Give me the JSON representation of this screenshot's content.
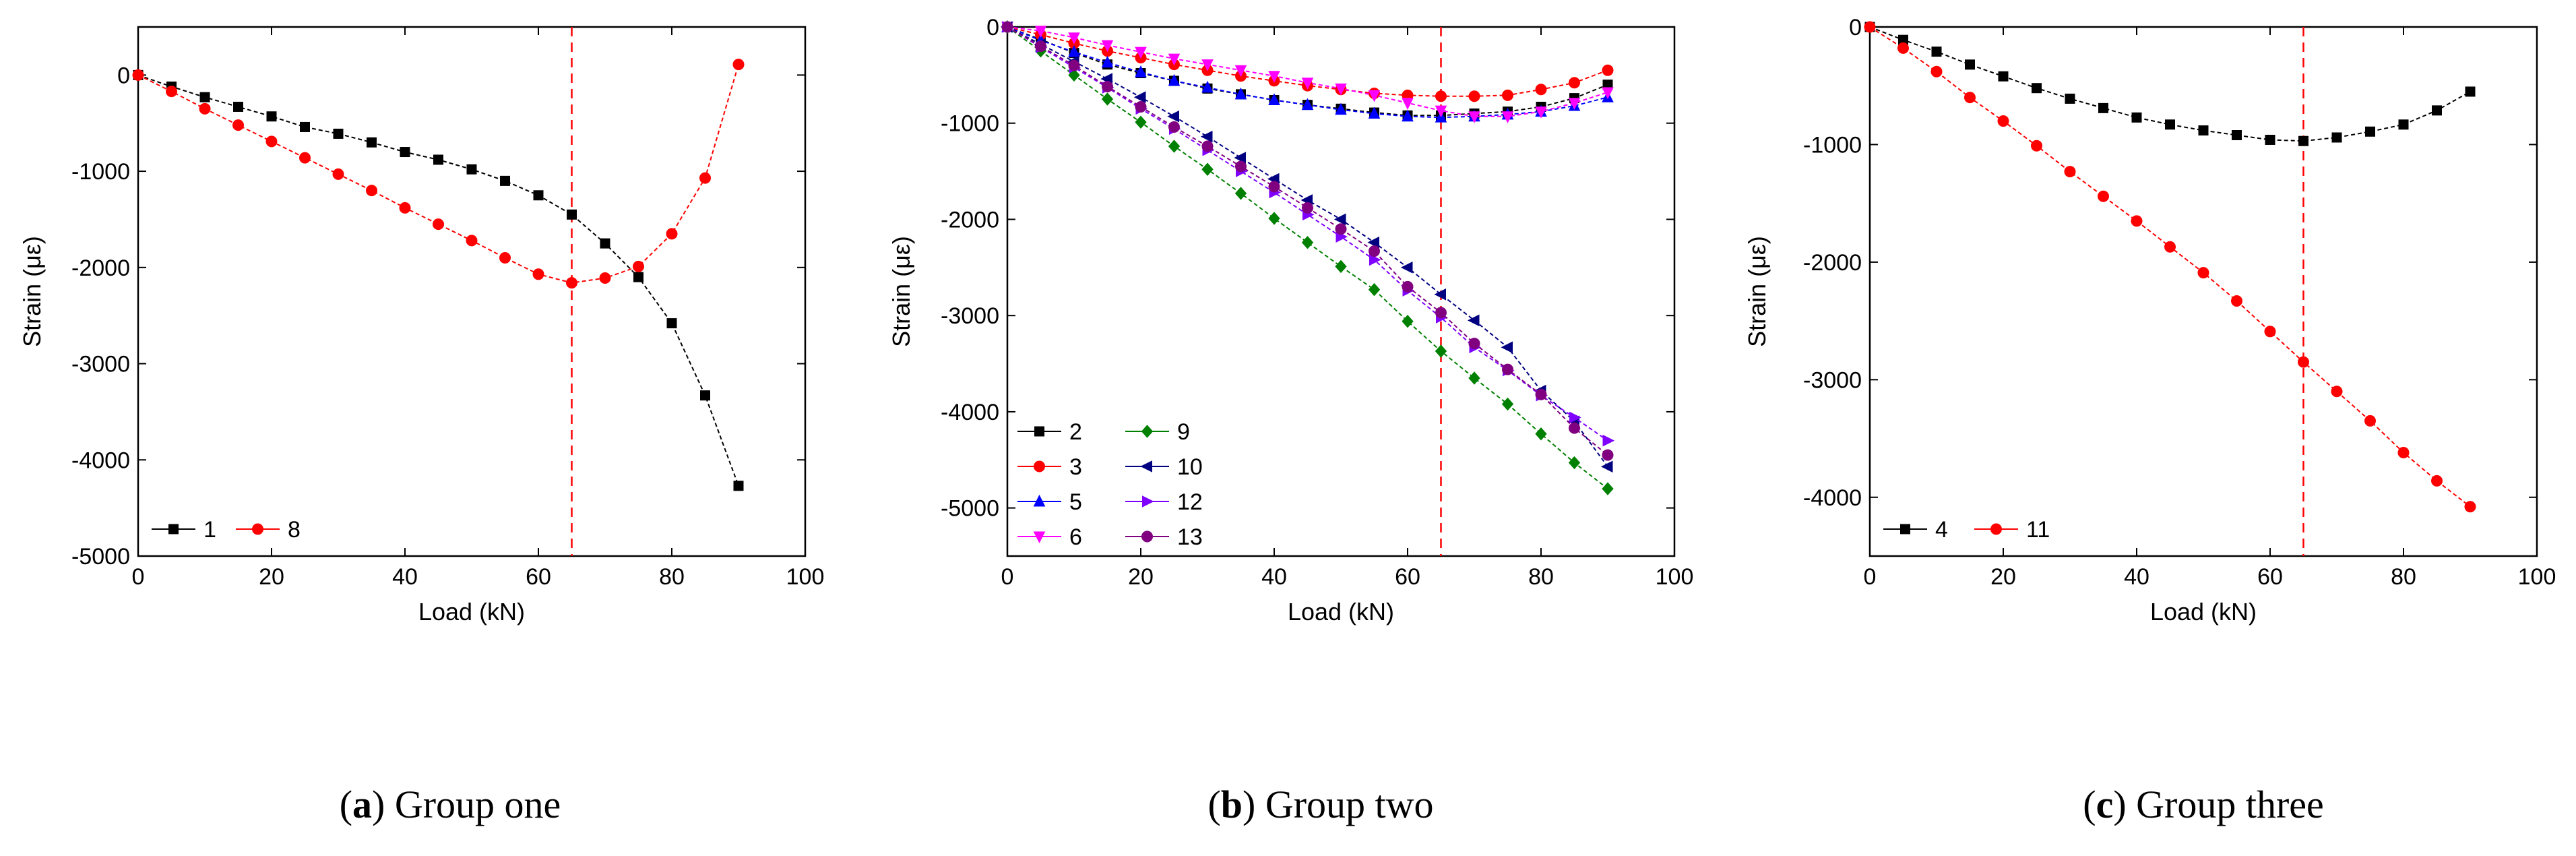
{
  "chart_data": [
    {
      "type": "line",
      "id": "a",
      "caption_letter": "a",
      "caption_text": "Group one",
      "xlabel": "Load (kN)",
      "ylabel": "Strain (με)",
      "xlim": [
        0,
        100
      ],
      "ylim": [
        -5000,
        500
      ],
      "xticks": [
        0,
        20,
        40,
        60,
        80,
        100
      ],
      "yticks": [
        -5000,
        -4000,
        -3000,
        -2000,
        -1000,
        0
      ],
      "xtick_labels": [
        "0",
        "20",
        "40",
        "60",
        "80",
        "100"
      ],
      "ytick_labels": [
        "-5000",
        "-4000",
        "-3000",
        "-2000",
        "-1000",
        "0"
      ],
      "vline_x": 65,
      "legend_position": "bottom-left",
      "legend_columns": 2,
      "x": [
        0,
        5,
        10,
        15,
        20,
        25,
        30,
        35,
        40,
        45,
        50,
        55,
        60,
        65,
        70,
        75,
        80,
        85,
        90
      ],
      "series": [
        {
          "name": "1",
          "color": "#000000",
          "marker": "square",
          "values": [
            0,
            -120,
            -230,
            -330,
            -430,
            -540,
            -610,
            -700,
            -800,
            -880,
            -980,
            -1100,
            -1250,
            -1450,
            -1750,
            -2100,
            -2580,
            -3330,
            -4270
          ]
        },
        {
          "name": "8",
          "color": "#ff0000",
          "marker": "circle",
          "values": [
            0,
            -170,
            -350,
            -520,
            -690,
            -860,
            -1030,
            -1200,
            -1380,
            -1550,
            -1720,
            -1900,
            -2070,
            -2160,
            -2110,
            -1990,
            -1650,
            -1070,
            110
          ]
        }
      ]
    },
    {
      "type": "line",
      "id": "b",
      "caption_letter": "b",
      "caption_text": "Group two",
      "xlabel": "Load (kN)",
      "ylabel": "Strain (με)",
      "xlim": [
        0,
        100
      ],
      "ylim": [
        -5500,
        0
      ],
      "xticks": [
        0,
        20,
        40,
        60,
        80,
        100
      ],
      "yticks": [
        -5000,
        -4000,
        -3000,
        -2000,
        -1000,
        0
      ],
      "xtick_labels": [
        "0",
        "20",
        "40",
        "60",
        "80",
        "100"
      ],
      "ytick_labels": [
        "-5000",
        "-4000",
        "-3000",
        "-2000",
        "-1000",
        "0"
      ],
      "vline_x": 65,
      "legend_position": "bottom-left",
      "legend_columns": 2,
      "x": [
        0,
        5,
        10,
        15,
        20,
        25,
        30,
        35,
        40,
        45,
        50,
        55,
        60,
        65,
        70,
        75,
        80,
        85,
        90
      ],
      "series": [
        {
          "name": "2",
          "color": "#000000",
          "marker": "square",
          "values": [
            0,
            -130,
            -270,
            -390,
            -480,
            -560,
            -640,
            -700,
            -760,
            -810,
            -850,
            -890,
            -920,
            -920,
            -900,
            -880,
            -830,
            -740,
            -600
          ]
        },
        {
          "name": "3",
          "color": "#ff0000",
          "marker": "circle",
          "values": [
            0,
            -80,
            -170,
            -250,
            -320,
            -390,
            -450,
            -510,
            -560,
            -610,
            -650,
            -690,
            -710,
            -720,
            -720,
            -710,
            -650,
            -580,
            -450
          ]
        },
        {
          "name": "5",
          "color": "#0000ff",
          "marker": "triangle-up",
          "values": [
            0,
            -140,
            -260,
            -370,
            -470,
            -560,
            -630,
            -700,
            -760,
            -810,
            -860,
            -900,
            -930,
            -940,
            -930,
            -910,
            -880,
            -820,
            -730
          ]
        },
        {
          "name": "6",
          "color": "#ff00ff",
          "marker": "triangle-down",
          "values": [
            0,
            -40,
            -110,
            -190,
            -260,
            -330,
            -390,
            -450,
            -510,
            -580,
            -640,
            -710,
            -790,
            -870,
            -930,
            -930,
            -880,
            -790,
            -680
          ]
        },
        {
          "name": "9",
          "color": "#008000",
          "marker": "diamond",
          "values": [
            0,
            -250,
            -500,
            -750,
            -990,
            -1240,
            -1480,
            -1730,
            -1990,
            -2240,
            -2490,
            -2730,
            -3060,
            -3370,
            -3650,
            -3920,
            -4230,
            -4530,
            -4800
          ]
        },
        {
          "name": "10",
          "color": "#000080",
          "marker": "triangle-left",
          "values": [
            0,
            -180,
            -360,
            -540,
            -730,
            -930,
            -1140,
            -1360,
            -1580,
            -1800,
            -2000,
            -2240,
            -2500,
            -2780,
            -3050,
            -3330,
            -3780,
            -4100,
            -4570
          ]
        },
        {
          "name": "12",
          "color": "#8000ff",
          "marker": "triangle-right",
          "values": [
            0,
            -210,
            -420,
            -630,
            -850,
            -1060,
            -1280,
            -1500,
            -1720,
            -1950,
            -2180,
            -2420,
            -2740,
            -3020,
            -3330,
            -3570,
            -3830,
            -4060,
            -4300
          ]
        },
        {
          "name": "13",
          "color": "#800080",
          "marker": "circle",
          "values": [
            0,
            -200,
            -400,
            -620,
            -830,
            -1040,
            -1240,
            -1450,
            -1660,
            -1880,
            -2100,
            -2330,
            -2700,
            -2970,
            -3290,
            -3560,
            -3820,
            -4170,
            -4450
          ]
        }
      ]
    },
    {
      "type": "line",
      "id": "c",
      "caption_letter": "c",
      "caption_text": "Group three",
      "xlabel": "Load (kN)",
      "ylabel": "Strain (με)",
      "xlim": [
        0,
        100
      ],
      "ylim": [
        -4500,
        0
      ],
      "xticks": [
        0,
        20,
        40,
        60,
        80,
        100
      ],
      "yticks": [
        -4000,
        -3000,
        -2000,
        -1000,
        0
      ],
      "xtick_labels": [
        "0",
        "20",
        "40",
        "60",
        "80",
        "100"
      ],
      "ytick_labels": [
        "-4000",
        "-3000",
        "-2000",
        "-1000",
        "0"
      ],
      "vline_x": 65,
      "legend_position": "bottom-left",
      "legend_columns": 2,
      "x": [
        0,
        5,
        10,
        15,
        20,
        25,
        30,
        35,
        40,
        45,
        50,
        55,
        60,
        65,
        70,
        75,
        80,
        85,
        90
      ],
      "series": [
        {
          "name": "4",
          "color": "#000000",
          "marker": "square",
          "values": [
            0,
            -110,
            -210,
            -320,
            -420,
            -520,
            -610,
            -690,
            -770,
            -830,
            -880,
            -920,
            -960,
            -970,
            -940,
            -890,
            -830,
            -710,
            -550
          ]
        },
        {
          "name": "11",
          "color": "#ff0000",
          "marker": "circle",
          "values": [
            0,
            -180,
            -380,
            -600,
            -800,
            -1010,
            -1230,
            -1440,
            -1650,
            -1870,
            -2090,
            -2330,
            -2590,
            -2850,
            -3100,
            -3350,
            -3620,
            -3860,
            -4080
          ]
        }
      ]
    }
  ]
}
